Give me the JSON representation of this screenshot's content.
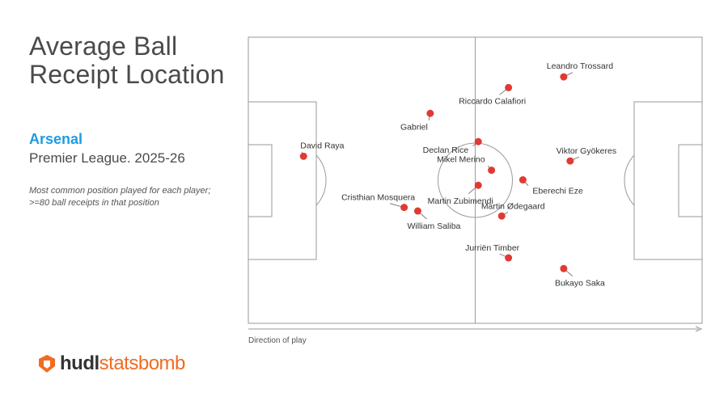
{
  "title": {
    "line1": "Average Ball",
    "line2": "Receipt Location"
  },
  "team": {
    "name": "Arsenal",
    "competition": "Premier League. 2025-26",
    "color": "#1e9be0"
  },
  "note": {
    "line1": "Most common position played for each player;",
    "line2": ">=80 ball receipts in that position"
  },
  "direction_label": "Direction of play",
  "brand": {
    "hudl": "hudl",
    "statsbomb": "statsbomb",
    "color": "#f26b21"
  },
  "chart_data": {
    "type": "scatter",
    "xlim": [
      0,
      120
    ],
    "ylim": [
      0,
      80
    ],
    "marker_color": "#e03a33",
    "points": [
      {
        "name": "David Raya",
        "x": 14.6,
        "y": 33.3
      },
      {
        "name": "Gabriel",
        "x": 48.1,
        "y": 21.3
      },
      {
        "name": "Riccardo Calafiori",
        "x": 68.8,
        "y": 14.1
      },
      {
        "name": "Leandro Trossard",
        "x": 83.4,
        "y": 11.1
      },
      {
        "name": "Declan Rice",
        "x": 60.8,
        "y": 29.2
      },
      {
        "name": "Mikel Merino",
        "x": 64.3,
        "y": 37.2
      },
      {
        "name": "Viktor Gyökeres",
        "x": 85.1,
        "y": 34.6
      },
      {
        "name": "Eberechi Eze",
        "x": 72.6,
        "y": 39.9
      },
      {
        "name": "Martin Zubimendi",
        "x": 60.8,
        "y": 41.4
      },
      {
        "name": "Cristhian Mosquera",
        "x": 41.2,
        "y": 47.6
      },
      {
        "name": "William Saliba",
        "x": 44.8,
        "y": 48.6
      },
      {
        "name": "Martin Ødegaard",
        "x": 67.0,
        "y": 50.0
      },
      {
        "name": "Jurriën Timber",
        "x": 68.8,
        "y": 61.7
      },
      {
        "name": "Bukayo Saka",
        "x": 83.4,
        "y": 64.7
      }
    ]
  }
}
